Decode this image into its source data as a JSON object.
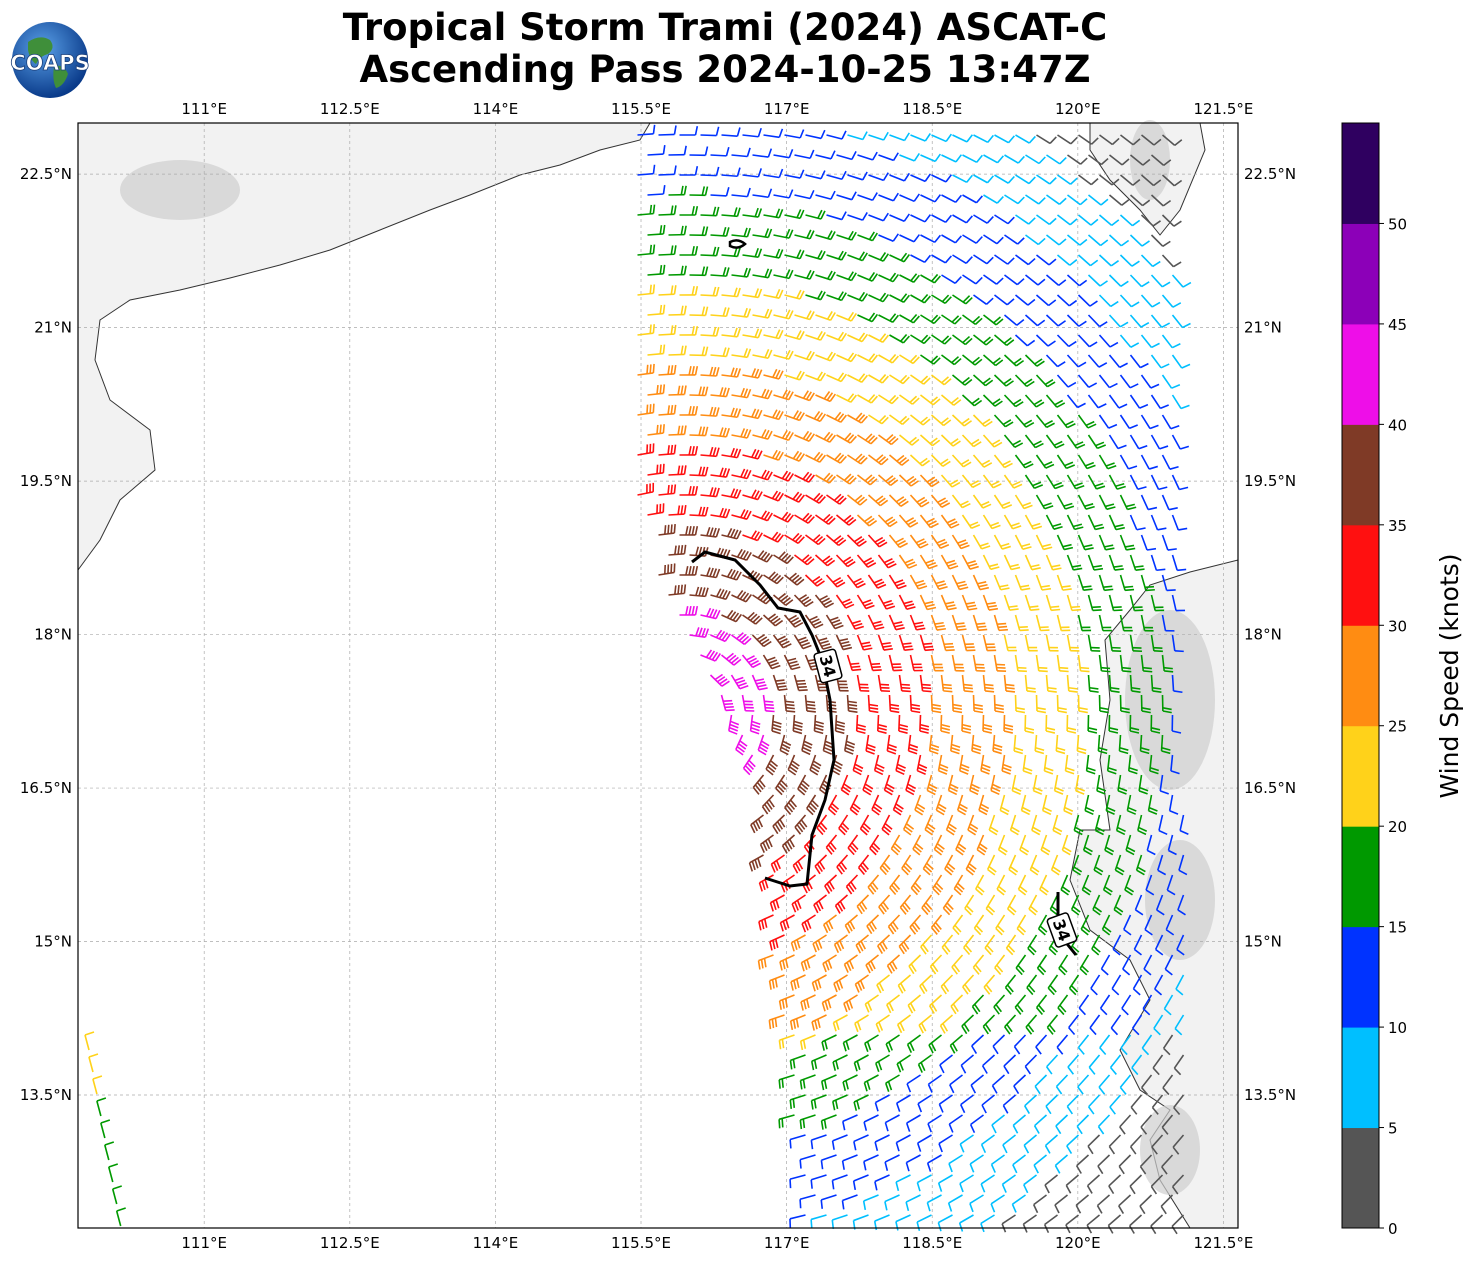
{
  "title": {
    "line1": "Tropical Storm Trami (2024) ASCAT-C",
    "line2": "Ascending Pass 2024-10-25 13:47Z"
  },
  "logo": {
    "text": "COAPS"
  },
  "map": {
    "lon_range": [
      109.7,
      121.65
    ],
    "lat_range": [
      12.2,
      23.0
    ],
    "lon_ticks": [
      "111°E",
      "112.5°E",
      "114°E",
      "115.5°E",
      "117°E",
      "118.5°E",
      "120°E",
      "121.5°E"
    ],
    "lat_ticks": [
      "22.5°N",
      "21°N",
      "19.5°N",
      "18°N",
      "16.5°N",
      "15°N",
      "13.5°N"
    ],
    "gridlines": true,
    "contour_label": "34",
    "contour_labels": [
      "34",
      "34"
    ]
  },
  "colorbar": {
    "title": "Wind Speed (knots)",
    "ticks": [
      "0",
      "5",
      "10",
      "15",
      "20",
      "25",
      "30",
      "35",
      "40",
      "45",
      "50"
    ],
    "colors": [
      "#555555",
      "#00bfff",
      "#0033ff",
      "#009900",
      "#ffd21a",
      "#ff8c12",
      "#ff1010",
      "#7f3a26",
      "#ee0ee8",
      "#8c00b8",
      "#2f0060"
    ]
  }
}
